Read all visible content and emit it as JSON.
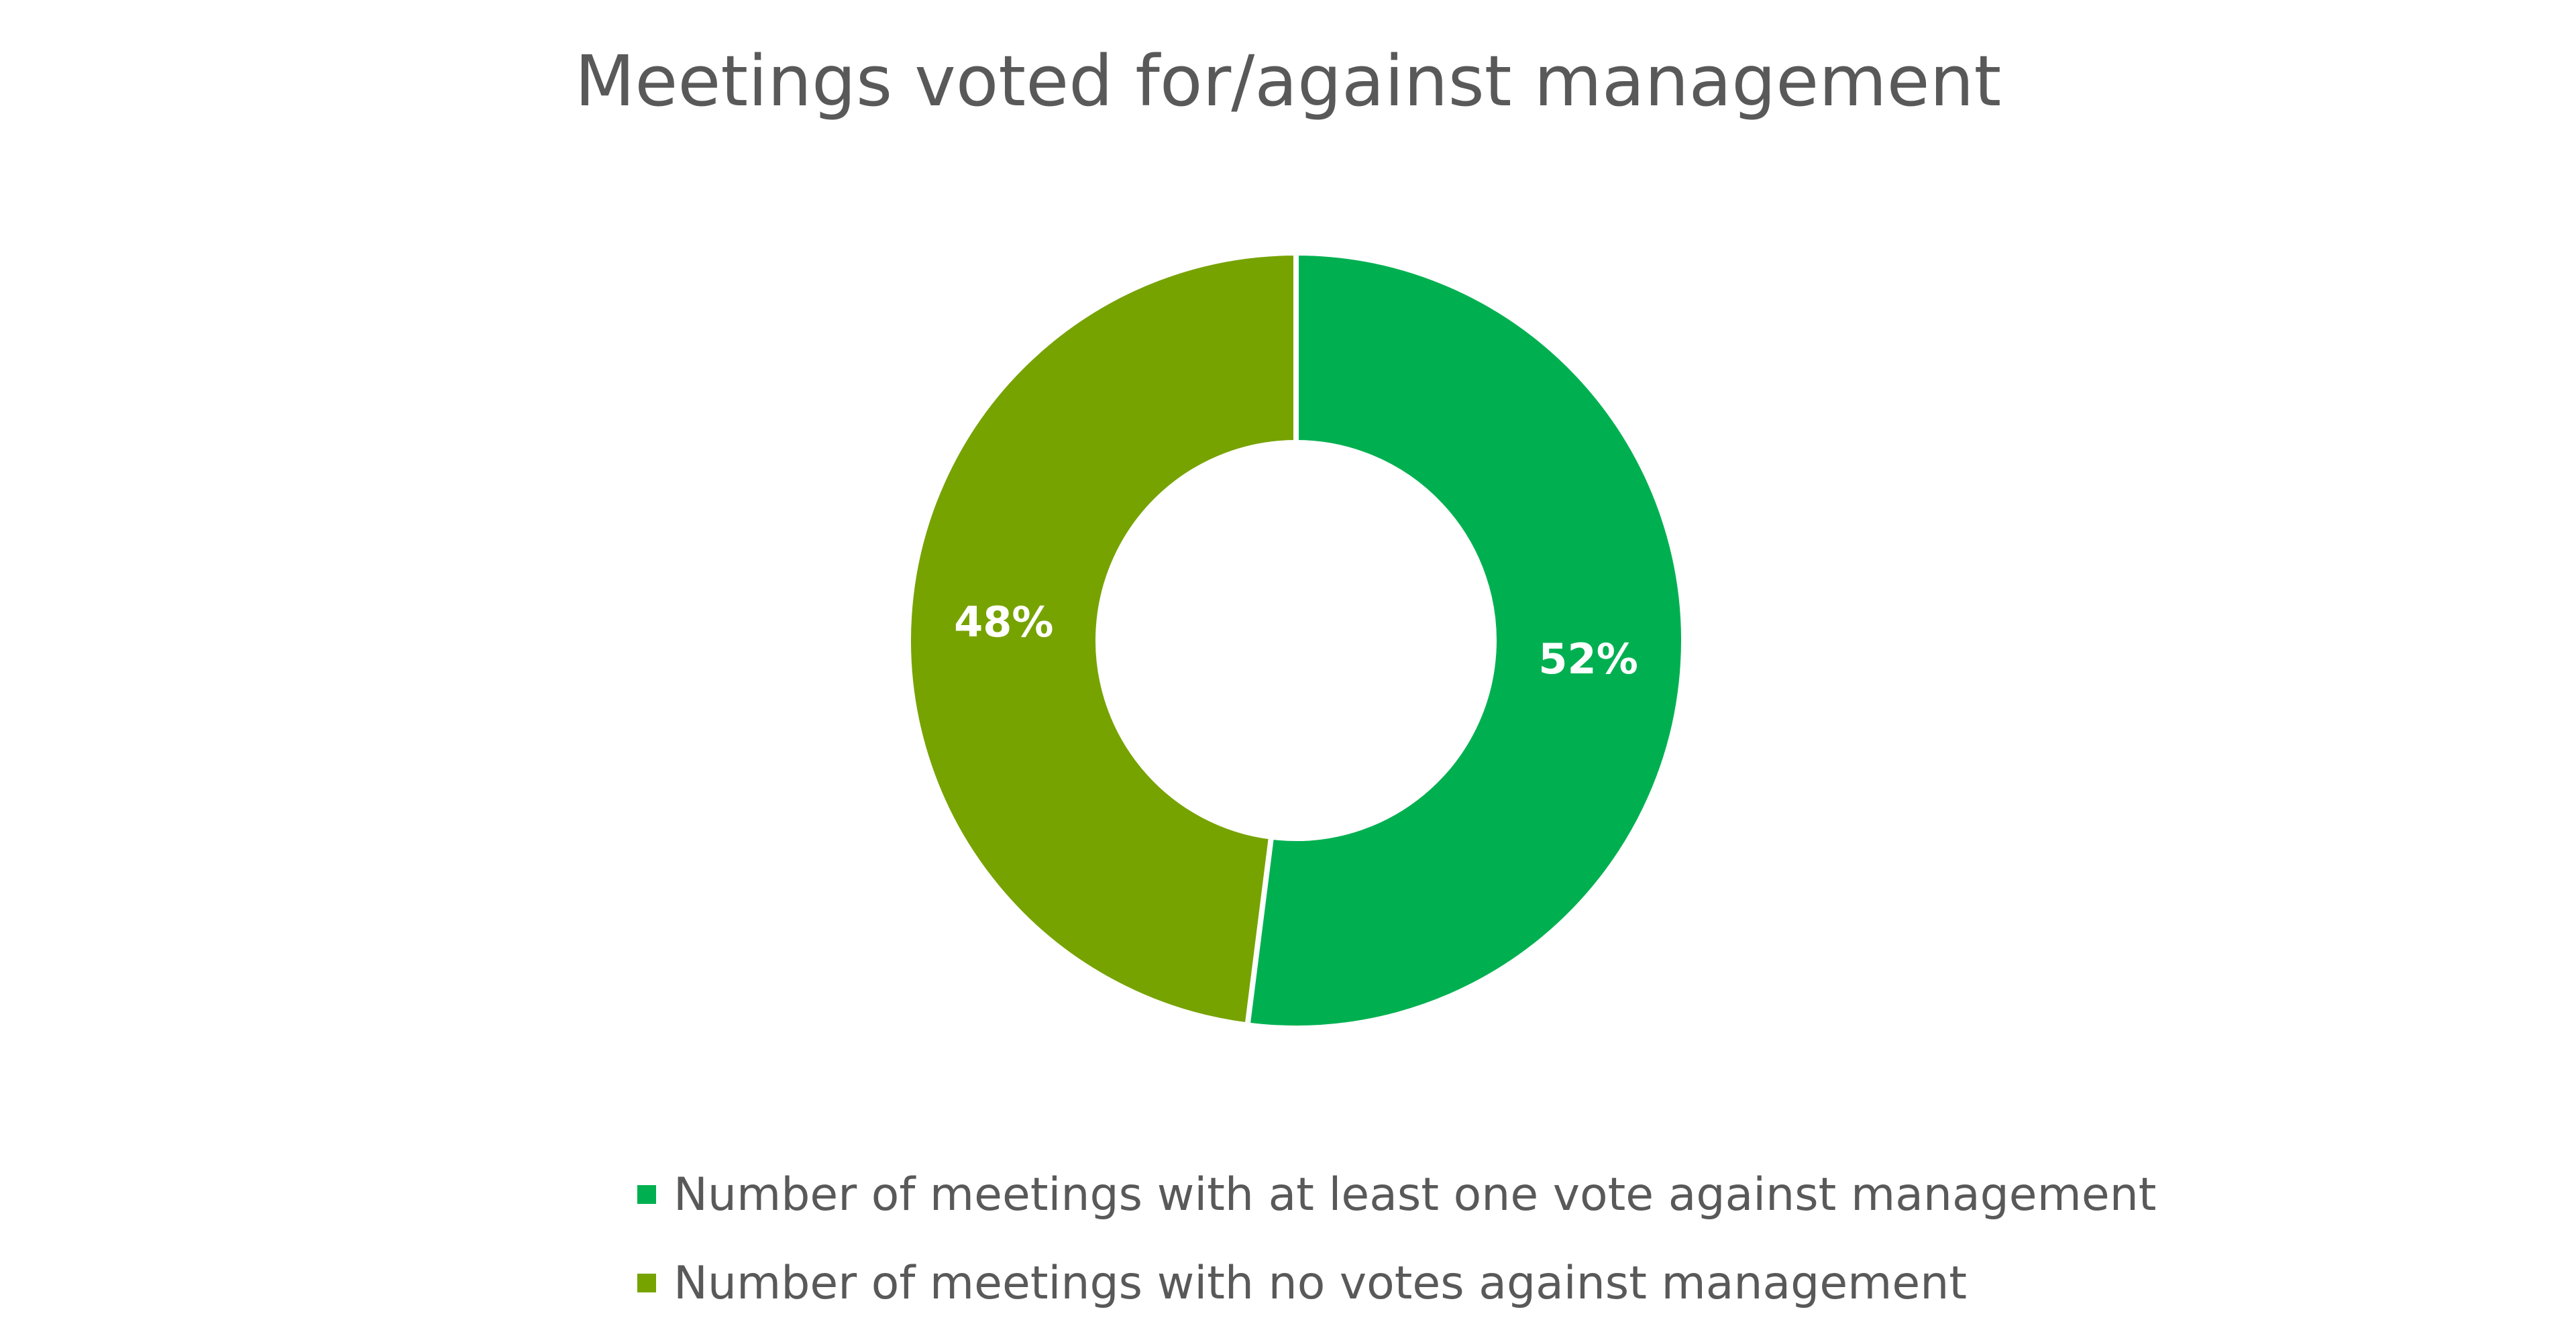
{
  "chart_data": {
    "type": "pie",
    "variant": "donut",
    "title": "Meetings voted for/against management",
    "slices": [
      {
        "name": "Number of meetings with at least one vote against management",
        "value": 52,
        "label": "52%",
        "color": "#00b050"
      },
      {
        "name": "Number of meetings with no votes against management",
        "value": 48,
        "label": "48%",
        "color": "#76a300"
      }
    ],
    "legend_placement": "bottom"
  }
}
